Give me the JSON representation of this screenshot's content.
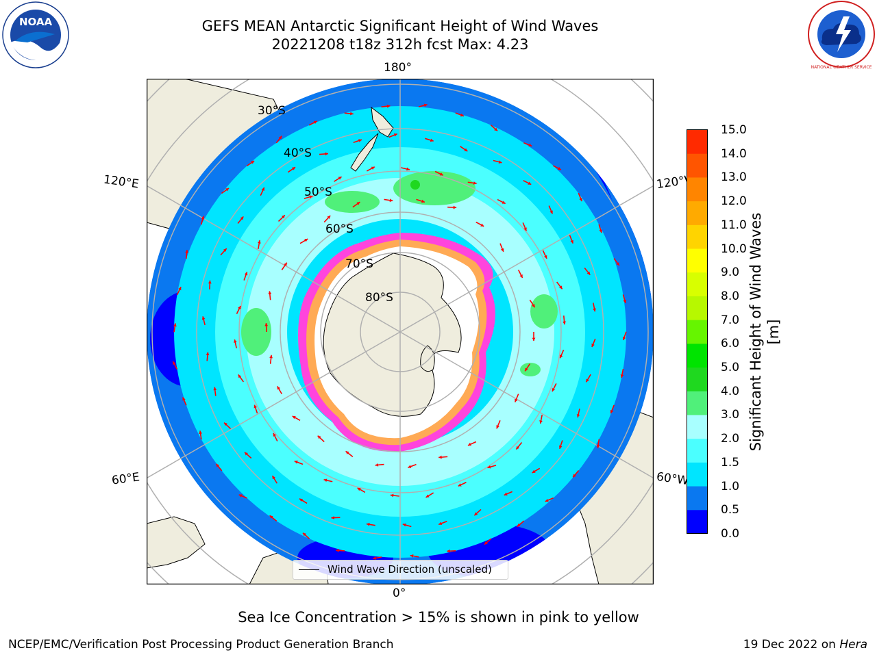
{
  "title_line1": "GEFS MEAN Antarctic Significant Height of Wind Waves",
  "title_line2": "20221208 t18z 312h fcst   Max: 4.23",
  "map_labels": {
    "lon_top": "180°",
    "lon_bottom": "0°",
    "lon_left_upper": "120°E",
    "lon_left_lower": "60°E",
    "lon_right_upper": "120°W",
    "lon_right_lower": "60°W",
    "lat_30": "30°S",
    "lat_40": "40°S",
    "lat_50": "50°S",
    "lat_60": "60°S",
    "lat_70": "70°S",
    "lat_80": "80°S"
  },
  "legend": {
    "label": "Wind Wave Direction (unscaled)"
  },
  "colorbar": {
    "title": "Significant Height of Wind Waves [m]",
    "ticks": [
      "0.0",
      "0.5",
      "1.0",
      "1.5",
      "2.0",
      "3.0",
      "4.0",
      "5.0",
      "6.0",
      "7.0",
      "8.0",
      "9.0",
      "10.0",
      "11.0",
      "12.0",
      "13.0",
      "14.0",
      "15.0"
    ],
    "colors": [
      "#0000ff",
      "#0a78f0",
      "#00e5ff",
      "#4bffff",
      "#a8ffff",
      "#50f07a",
      "#1fd81f",
      "#00e400",
      "#66f500",
      "#b7f800",
      "#d8ff00",
      "#ffff00",
      "#ffd400",
      "#ffaa00",
      "#ff8500",
      "#ff5500",
      "#ff2a00"
    ]
  },
  "footer_note": "Sea Ice Concentration > 15% is shown in pink to yellow",
  "credit_left": "NCEP/EMC/Verification Post Processing Product Generation Branch",
  "credit_date": "19 Dec 2022 on",
  "credit_system": "Hera",
  "logos": {
    "left_text": "NOAA",
    "right_text": "NATIONAL WEATHER SERVICE"
  },
  "colors": {
    "land": "#efedde",
    "arrow": "#ff0000",
    "grid": "#b0b0b0",
    "ice_fill": "#ffffff",
    "ice_edge_pink": "#ff44dd",
    "ice_edge_orange": "#ffaa55"
  }
}
